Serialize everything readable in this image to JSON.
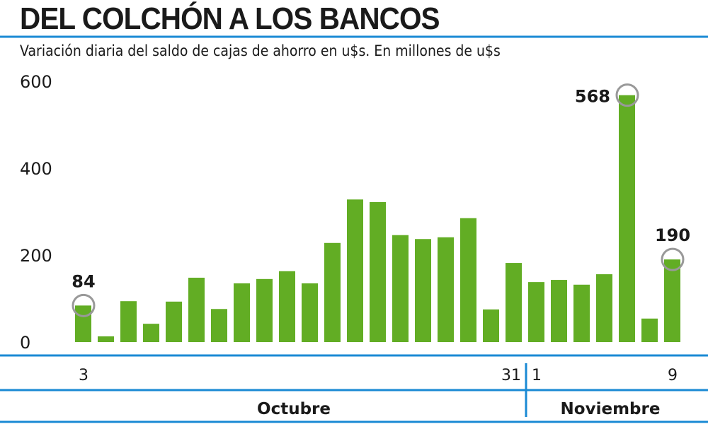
{
  "chart_data": {
    "type": "bar",
    "title": "DEL COLCHÓN A LOS BANCOS",
    "subtitle": "Variación diaria del saldo de cajas de ahorro en u$s. En millones de u$s",
    "xlabel": "",
    "ylabel": "",
    "ylim": [
      0,
      600
    ],
    "yticks": [
      "0",
      "200",
      "400",
      "600"
    ],
    "x_tick_labels": [
      {
        "index": 0,
        "label": "3"
      },
      {
        "index": 19,
        "label": "31"
      },
      {
        "index": 20,
        "label": "1"
      },
      {
        "index": 26,
        "label": "9"
      }
    ],
    "months": [
      {
        "label": "Octubre",
        "start": 0,
        "end": 19
      },
      {
        "label": "Noviembre",
        "start": 20,
        "end": 26
      }
    ],
    "values": [
      84,
      13,
      94,
      42,
      93,
      148,
      76,
      135,
      145,
      163,
      135,
      228,
      328,
      322,
      246,
      237,
      241,
      285,
      75,
      182,
      138,
      143,
      132,
      156,
      568,
      54,
      190
    ],
    "annotations": [
      {
        "index": 0,
        "label": "84"
      },
      {
        "index": 24,
        "label": "568"
      },
      {
        "index": 26,
        "label": "190"
      }
    ],
    "grid": false,
    "colors": {
      "bar": "#62ad24",
      "rule": "#1a8ad4",
      "marker": "#999999"
    }
  }
}
